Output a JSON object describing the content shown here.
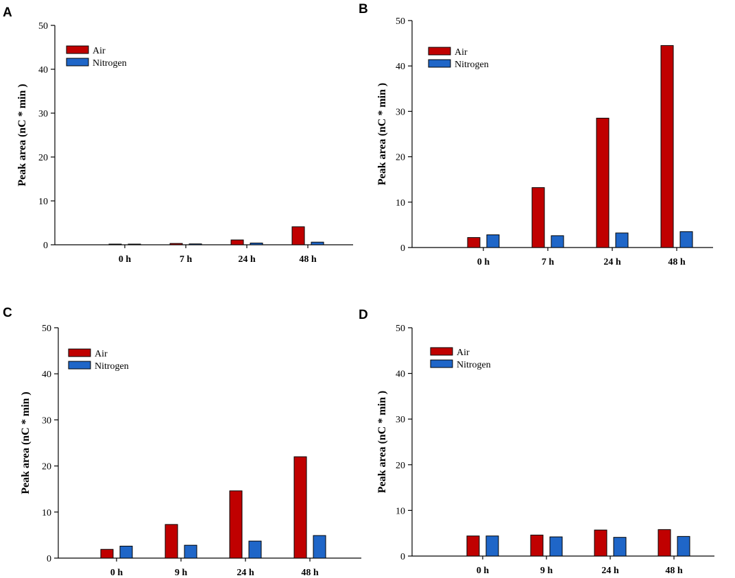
{
  "colors": {
    "air": "#C00000",
    "nitrogen": "#1F66C8",
    "axis": "#000000"
  },
  "chart_data": [
    {
      "panel": "A",
      "type": "bar",
      "categories": [
        "0 h",
        "7 h",
        "24 h",
        "48 h"
      ],
      "series": [
        {
          "name": "Air",
          "values": [
            0.1,
            0.3,
            1.1,
            4.1
          ]
        },
        {
          "name": "Nitrogen",
          "values": [
            0.1,
            0.2,
            0.4,
            0.6
          ]
        }
      ],
      "ylabel": "Peak area (nC * min )",
      "xlabel": "",
      "ylim": [
        0,
        50
      ],
      "yticks": [
        "0",
        "10",
        "20",
        "30",
        "40",
        "50"
      ],
      "legend": "top-left"
    },
    {
      "panel": "B",
      "type": "bar",
      "categories": [
        "0 h",
        "7 h",
        "24 h",
        "48 h"
      ],
      "series": [
        {
          "name": "Air",
          "values": [
            2.2,
            13.2,
            28.5,
            44.5
          ]
        },
        {
          "name": "Nitrogen",
          "values": [
            2.8,
            2.6,
            3.2,
            3.5
          ]
        }
      ],
      "ylabel": "Peak area (nC * min )",
      "xlabel": "",
      "ylim": [
        0,
        50
      ],
      "yticks": [
        "0",
        "10",
        "20",
        "30",
        "40",
        "50"
      ],
      "legend": "top-left"
    },
    {
      "panel": "C",
      "type": "bar",
      "categories": [
        "0 h",
        "9 h",
        "24 h",
        "48 h"
      ],
      "series": [
        {
          "name": "Air",
          "values": [
            1.9,
            7.3,
            14.6,
            22.0
          ]
        },
        {
          "name": "Nitrogen",
          "values": [
            2.6,
            2.8,
            3.7,
            4.9
          ]
        }
      ],
      "ylabel": "Peak area (nC * min )",
      "xlabel": "",
      "ylim": [
        0,
        50
      ],
      "yticks": [
        "0",
        "10",
        "20",
        "30",
        "40",
        "50"
      ],
      "legend": "top-left"
    },
    {
      "panel": "D",
      "type": "bar",
      "categories": [
        "0 h",
        "9 h",
        "24 h",
        "48 h"
      ],
      "series": [
        {
          "name": "Air",
          "values": [
            4.4,
            4.6,
            5.7,
            5.8
          ]
        },
        {
          "name": "Nitrogen",
          "values": [
            4.4,
            4.2,
            4.1,
            4.3
          ]
        }
      ],
      "ylabel": "Peak area (nC * min )",
      "xlabel": "",
      "ylim": [
        0,
        50
      ],
      "yticks": [
        "0",
        "10",
        "20",
        "30",
        "40",
        "50"
      ],
      "legend": "top-left"
    }
  ]
}
